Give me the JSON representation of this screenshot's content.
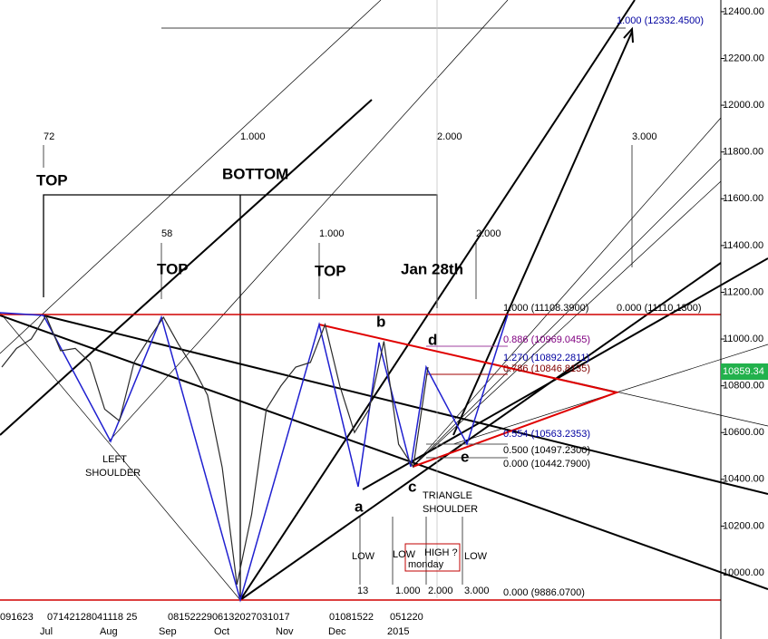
{
  "chart_data": {
    "type": "line",
    "series": [
      {
        "color": "#2a2a2a",
        "values": [
          10880,
          10960,
          11000,
          11100,
          10950,
          10960,
          10900,
          10700,
          10650,
          10900,
          11000,
          11093,
          10980,
          10880,
          10760,
          10450,
          9950,
          10250,
          10700,
          10800,
          10880,
          10900,
          11062,
          10800,
          10600,
          10700,
          10990,
          10550,
          10454,
          10880
        ]
      }
    ],
    "ylim": [
      9783,
      12450
    ],
    "yticks": [
      {
        "value": 10000,
        "label": "10000.00"
      },
      {
        "value": 10200,
        "label": "10200.00"
      },
      {
        "value": 10400,
        "label": "10400.00"
      },
      {
        "value": 10600,
        "label": "10600.00"
      },
      {
        "value": 10800,
        "label": "10800.00"
      },
      {
        "value": 11000,
        "label": "11000.00"
      },
      {
        "value": 11200,
        "label": "11200.00"
      },
      {
        "value": 11400,
        "label": "11400.00"
      },
      {
        "value": 11600,
        "label": "11600.00"
      },
      {
        "value": 11800,
        "label": "11800.00"
      },
      {
        "value": 12000,
        "label": "12000.00"
      },
      {
        "value": 12200,
        "label": "12200.00"
      },
      {
        "value": 12400,
        "label": "12400.00"
      }
    ],
    "x_labels": [
      "091623",
      "07142128041118 25",
      "0815222906132027031017",
      "01081522",
      "051220"
    ],
    "months": [
      "Jul",
      "Aug",
      "Sep",
      "Oct",
      "Nov",
      "Dec",
      "2015"
    ],
    "last_price": "10859.34",
    "annotations": [
      "72",
      "1.000",
      "2.000",
      "3.000",
      "TOP",
      "BOTTOM",
      "58",
      "TOP",
      "1.000",
      "2.000",
      "TOP",
      "Jan 28th",
      "b",
      "d",
      "a",
      "c",
      "e",
      "LEFT",
      "SHOULDER",
      "TRIANGLE",
      "SHOULDER",
      "LOW",
      "LOW",
      "HIGH ?",
      "monday",
      "LOW",
      "13",
      "1.000",
      "2.000",
      "3.000",
      "1.000 (12332.4500)",
      "1.000 (11108.3900)",
      "0.000 (11110.1300)",
      "0.886 (10969.0455)",
      "1.270 (10892.2811)",
      "0.786 (10846.8135)",
      "0.554 (10563.2353)",
      "0.500 (10497.2300)",
      "0.000 (10442.7900)",
      "0.000 (9886.0700)"
    ]
  }
}
